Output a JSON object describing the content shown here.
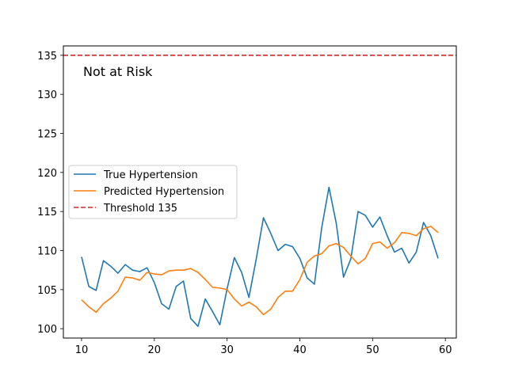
{
  "chart_data": {
    "type": "line",
    "x": [
      10,
      11,
      12,
      13,
      14,
      15,
      16,
      17,
      18,
      19,
      20,
      21,
      22,
      23,
      24,
      25,
      26,
      27,
      28,
      29,
      30,
      31,
      32,
      33,
      34,
      35,
      36,
      37,
      38,
      39,
      40,
      41,
      42,
      43,
      44,
      45,
      46,
      47,
      48,
      49,
      50,
      51,
      52,
      53,
      54,
      55,
      56,
      57,
      58,
      59
    ],
    "series": [
      {
        "name": "True Hypertension",
        "color": "#1f77b4",
        "style": "solid",
        "values": [
          109.2,
          105.4,
          104.9,
          108.7,
          108.0,
          107.1,
          108.2,
          107.5,
          107.3,
          107.8,
          105.9,
          103.2,
          102.5,
          105.4,
          106.1,
          101.3,
          100.3,
          103.8,
          102.2,
          100.5,
          105.1,
          109.1,
          107.2,
          104.0,
          108.9,
          114.2,
          112.2,
          110.0,
          110.8,
          110.5,
          109.0,
          106.5,
          105.7,
          112.9,
          118.1,
          113.5,
          106.6,
          108.9,
          115.0,
          114.5,
          113.0,
          114.3,
          111.9,
          109.8,
          110.3,
          108.4,
          109.8,
          113.6,
          111.9,
          109.0
        ]
      },
      {
        "name": "Predicted Hypertension",
        "color": "#ff7f0e",
        "style": "solid",
        "values": [
          103.7,
          102.8,
          102.1,
          103.2,
          103.9,
          104.8,
          106.6,
          106.5,
          106.2,
          107.2,
          107.0,
          106.9,
          107.4,
          107.5,
          107.5,
          107.7,
          107.2,
          106.3,
          105.3,
          105.2,
          105.0,
          103.8,
          102.9,
          103.4,
          102.8,
          101.8,
          102.5,
          104.0,
          104.8,
          104.8,
          106.3,
          108.5,
          109.3,
          109.6,
          110.6,
          110.9,
          110.4,
          109.3,
          108.3,
          109.0,
          110.9,
          111.1,
          110.3,
          111.0,
          112.3,
          112.2,
          111.9,
          112.8,
          113.1,
          112.3
        ]
      }
    ],
    "threshold": {
      "name": "Threshold 135",
      "value": 135,
      "color": "#d62728",
      "style": "dashed"
    },
    "annotation": "Not at Risk",
    "xlim": [
      7.5,
      61.5
    ],
    "ylim": [
      98.8,
      136.2
    ],
    "xticks": [
      10,
      20,
      30,
      40,
      50,
      60
    ],
    "yticks": [
      100,
      105,
      110,
      115,
      120,
      125,
      130,
      135
    ],
    "grid": false,
    "legend_position": "center-left"
  }
}
